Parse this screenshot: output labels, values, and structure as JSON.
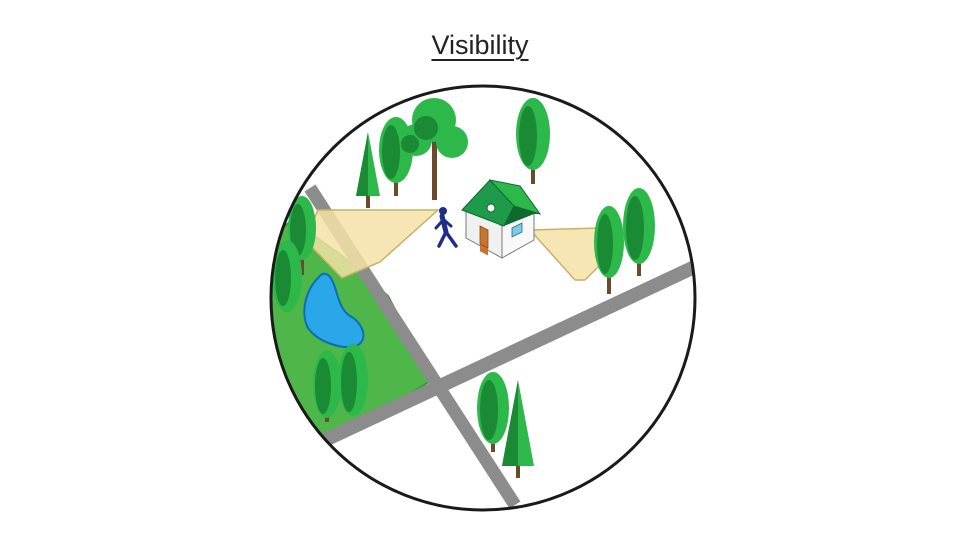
{
  "title": "Visibility",
  "colors": {
    "outline": "#1a1a1a",
    "road": "#8c8c8c",
    "park": "#4fb64a",
    "park_edge": "#3a9a3a",
    "pond": "#2aa7e8",
    "tree_light": "#2db84a",
    "tree_dark": "#1a8a35",
    "trunk": "#6b4a2e",
    "view_cone": "#f3e2a6",
    "view_cone_edge": "#c9b06a",
    "person": "#1f2d86",
    "house_roof": "#1f9a4a",
    "house_wall": "#f4f4f4",
    "door": "#c9742e"
  }
}
